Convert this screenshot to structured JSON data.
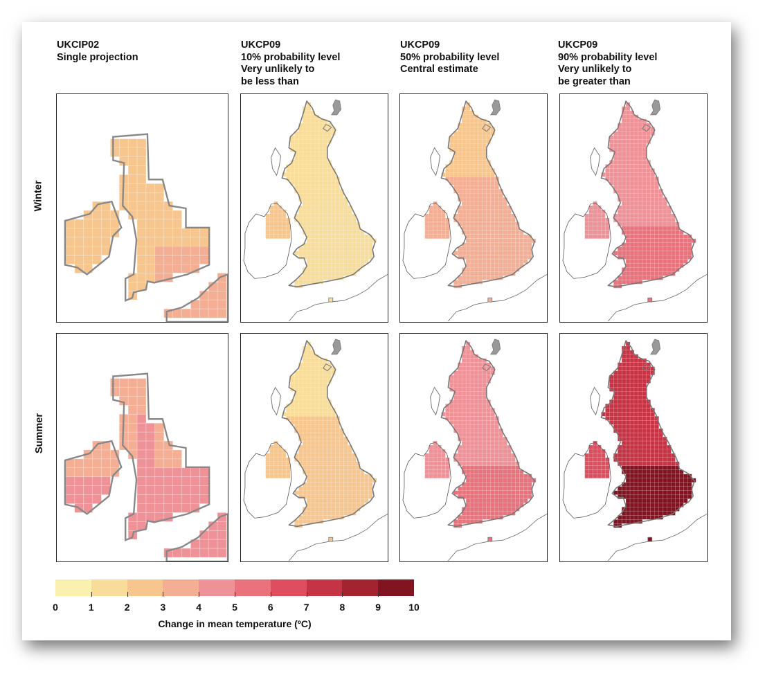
{
  "columns": [
    {
      "lines": [
        "UKCIP02",
        "Single projection"
      ]
    },
    {
      "lines": [
        "UKCP09",
        "10% probability level",
        "Very unlikely to",
        "be less than"
      ]
    },
    {
      "lines": [
        "UKCP09",
        "50% probability level",
        "Central estimate"
      ]
    },
    {
      "lines": [
        "UKCP09",
        "90% probability level",
        "Very unlikely to",
        "be greater than"
      ]
    }
  ],
  "rows": [
    {
      "label": "Winter"
    },
    {
      "label": "Summer"
    }
  ],
  "palette": [
    "#faf0b0",
    "#f7dc9a",
    "#f6c68e",
    "#f3ae94",
    "#ee9298",
    "#e9727c",
    "#df4e5f",
    "#c53445",
    "#a3232f",
    "#821422"
  ],
  "panels": {
    "ukcip02": {
      "winter": {
        "base_class": 2,
        "hot_class": 3
      },
      "summer": {
        "base_class": 3,
        "hot_class": 4
      }
    },
    "ukcp09": {
      "winter": [
        {
          "south": 1,
          "north": 1,
          "scot_north": 1,
          "ireland": 2
        },
        {
          "south": 3,
          "north": 3,
          "scot_north": 2,
          "ireland": 3
        },
        {
          "south": 5,
          "north": 4,
          "scot_north": 4,
          "ireland": 4
        }
      ],
      "summer": [
        {
          "south": 2,
          "north": 2,
          "scot_north": 1,
          "ireland": 2
        },
        {
          "south": 5,
          "north": 4,
          "scot_north": 4,
          "ireland": 4
        },
        {
          "south": 9,
          "north": 7,
          "scot_north": 7,
          "ireland": 6
        }
      ]
    }
  },
  "legend": {
    "ticks": [
      "0",
      "1",
      "2",
      "3",
      "4",
      "5",
      "6",
      "7",
      "8",
      "9",
      "10"
    ],
    "title": "Change in mean temperature (ºC)"
  }
}
